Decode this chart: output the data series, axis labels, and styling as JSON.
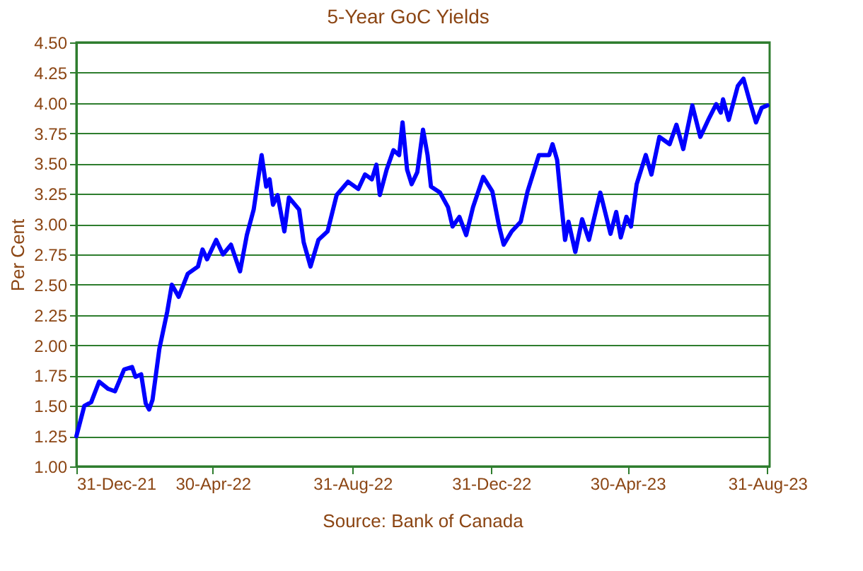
{
  "chart_data": {
    "type": "line",
    "title": "5-Year GoC Yields",
    "ylabel": "Per Cent",
    "annotations": [
      "Source: Bank of Canada"
    ],
    "x": [
      "2021-12-31",
      "2022-01-07",
      "2022-01-13",
      "2022-01-20",
      "2022-01-28",
      "2022-02-03",
      "2022-02-11",
      "2022-02-18",
      "2022-02-21",
      "2022-02-26",
      "2022-03-02",
      "2022-03-05",
      "2022-03-08",
      "2022-03-14",
      "2022-03-21",
      "2022-03-25",
      "2022-03-31",
      "2022-04-08",
      "2022-04-17",
      "2022-04-21",
      "2022-04-25",
      "2022-05-03",
      "2022-05-09",
      "2022-05-16",
      "2022-05-24",
      "2022-05-30",
      "2022-06-05",
      "2022-06-12",
      "2022-06-16",
      "2022-06-19",
      "2022-06-22",
      "2022-06-26",
      "2022-07-02",
      "2022-07-06",
      "2022-07-15",
      "2022-07-19",
      "2022-07-25",
      "2022-08-01",
      "2022-08-09",
      "2022-08-17",
      "2022-08-27",
      "2022-09-05",
      "2022-09-11",
      "2022-09-17",
      "2022-09-21",
      "2022-09-24",
      "2022-09-30",
      "2022-10-06",
      "2022-10-11",
      "2022-10-14",
      "2022-10-18",
      "2022-10-22",
      "2022-10-27",
      "2022-11-01",
      "2022-11-05",
      "2022-11-08",
      "2022-11-16",
      "2022-11-23",
      "2022-11-27",
      "2022-12-03",
      "2022-12-09",
      "2022-12-15",
      "2022-12-24",
      "2023-01-01",
      "2023-01-07",
      "2023-01-11",
      "2023-01-18",
      "2023-01-26",
      "2023-02-01",
      "2023-02-11",
      "2023-02-20",
      "2023-02-23",
      "2023-02-27",
      "2023-03-03",
      "2023-03-06",
      "2023-03-09",
      "2023-03-15",
      "2023-03-21",
      "2023-03-27",
      "2023-04-06",
      "2023-04-15",
      "2023-04-20",
      "2023-04-24",
      "2023-04-29",
      "2023-05-03",
      "2023-05-08",
      "2023-05-16",
      "2023-05-21",
      "2023-05-28",
      "2023-06-06",
      "2023-06-12",
      "2023-06-18",
      "2023-06-26",
      "2023-07-03",
      "2023-07-11",
      "2023-07-17",
      "2023-07-21",
      "2023-07-23",
      "2023-07-28",
      "2023-08-05",
      "2023-08-10",
      "2023-08-15",
      "2023-08-21",
      "2023-08-26",
      "2023-08-31"
    ],
    "series": [
      {
        "color": "#0000ff",
        "values": [
          1.25,
          1.5,
          1.53,
          1.7,
          1.64,
          1.62,
          1.8,
          1.82,
          1.74,
          1.76,
          1.52,
          1.47,
          1.55,
          1.97,
          2.28,
          2.5,
          2.4,
          2.59,
          2.65,
          2.79,
          2.71,
          2.87,
          2.75,
          2.83,
          2.61,
          2.91,
          3.12,
          3.57,
          3.31,
          3.37,
          3.16,
          3.24,
          2.94,
          3.22,
          3.12,
          2.85,
          2.65,
          2.87,
          2.94,
          3.24,
          3.35,
          3.29,
          3.41,
          3.37,
          3.49,
          3.24,
          3.45,
          3.61,
          3.57,
          3.84,
          3.45,
          3.33,
          3.43,
          3.78,
          3.57,
          3.31,
          3.26,
          3.14,
          2.98,
          3.06,
          2.91,
          3.14,
          3.39,
          3.27,
          2.98,
          2.83,
          2.94,
          3.02,
          3.27,
          3.57,
          3.57,
          3.66,
          3.53,
          3.14,
          2.87,
          3.02,
          2.77,
          3.04,
          2.87,
          3.26,
          2.92,
          3.1,
          2.89,
          3.06,
          2.98,
          3.33,
          3.57,
          3.41,
          3.72,
          3.66,
          3.82,
          3.62,
          3.98,
          3.72,
          3.88,
          3.99,
          3.92,
          4.03,
          3.86,
          4.14,
          4.2,
          4.03,
          3.84,
          3.96,
          3.98
        ]
      }
    ],
    "xlim": [
      "2021-12-31",
      "2023-09-02"
    ],
    "xticks": [
      {
        "value": "2021-12-31",
        "label": "31-Dec-21"
      },
      {
        "value": "2022-04-30",
        "label": "30-Apr-22"
      },
      {
        "value": "2022-08-31",
        "label": "31-Aug-22"
      },
      {
        "value": "2022-12-31",
        "label": "31-Dec-22"
      },
      {
        "value": "2023-04-30",
        "label": "30-Apr-23"
      },
      {
        "value": "2023-08-31",
        "label": "31-Aug-23"
      }
    ],
    "ylim": [
      1.0,
      4.5
    ],
    "yticks": [
      {
        "value": 1.0,
        "label": "1.00"
      },
      {
        "value": 1.25,
        "label": "1.25"
      },
      {
        "value": 1.5,
        "label": "1.50"
      },
      {
        "value": 1.75,
        "label": "1.75"
      },
      {
        "value": 2.0,
        "label": "2.00"
      },
      {
        "value": 2.25,
        "label": "2.25"
      },
      {
        "value": 2.5,
        "label": "2.50"
      },
      {
        "value": 2.75,
        "label": "2.75"
      },
      {
        "value": 3.0,
        "label": "3.00"
      },
      {
        "value": 3.25,
        "label": "3.25"
      },
      {
        "value": 3.5,
        "label": "3.50"
      },
      {
        "value": 3.75,
        "label": "3.75"
      },
      {
        "value": 4.0,
        "label": "4.00"
      },
      {
        "value": 4.25,
        "label": "4.25"
      },
      {
        "value": 4.5,
        "label": "4.50"
      }
    ],
    "grid": "y",
    "legend": false,
    "marker": "none",
    "line_style": "solid"
  }
}
